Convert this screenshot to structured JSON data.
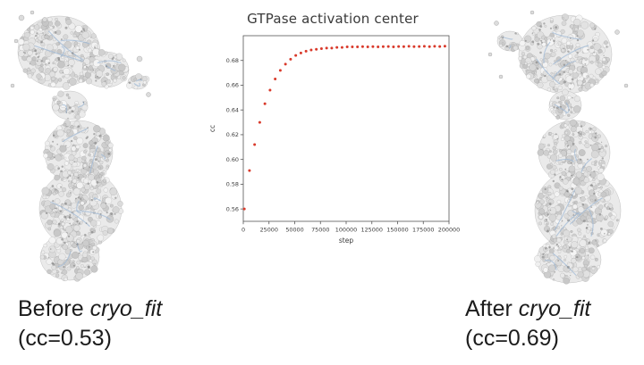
{
  "chart_data": {
    "type": "scatter",
    "title": "GTPase activation center",
    "xlabel": "step",
    "ylabel": "cc",
    "xlim": [
      0,
      200000
    ],
    "ylim": [
      0.55,
      0.7
    ],
    "x_ticks": [
      "0",
      "25000",
      "50000",
      "75000",
      "100000",
      "125000",
      "150000",
      "175000",
      "200000"
    ],
    "y_ticks": [
      "0.56",
      "0.58",
      "0.60",
      "0.62",
      "0.64",
      "0.66",
      "0.68"
    ],
    "marker_color": "#d93a2b",
    "axis_color": "#555555",
    "grid": false,
    "legend": "none",
    "x": [
      1000,
      6000,
      11000,
      16000,
      21000,
      26000,
      31000,
      36000,
      41000,
      46000,
      51000,
      56000,
      61000,
      66000,
      71000,
      76000,
      81000,
      86000,
      91000,
      96000,
      101000,
      106000,
      111000,
      116000,
      121000,
      126000,
      131000,
      136000,
      141000,
      146000,
      151000,
      156000,
      161000,
      166000,
      171000,
      176000,
      181000,
      186000,
      191000,
      196000
    ],
    "y": [
      0.56,
      0.591,
      0.612,
      0.63,
      0.645,
      0.656,
      0.665,
      0.672,
      0.677,
      0.681,
      0.684,
      0.686,
      0.6875,
      0.6885,
      0.689,
      0.6895,
      0.69,
      0.69,
      0.6905,
      0.6905,
      0.691,
      0.691,
      0.691,
      0.6912,
      0.691,
      0.6912,
      0.691,
      0.6912,
      0.6913,
      0.691,
      0.6913,
      0.6912,
      0.6914,
      0.6912,
      0.6913,
      0.6914,
      0.6912,
      0.6914,
      0.6913,
      0.6915
    ]
  },
  "captions": {
    "before_prefix": "Before ",
    "before_italic": "cryo_fit",
    "before_cc": "(cc=0.53)",
    "after_prefix": "After ",
    "after_italic": "cryo_fit",
    "after_cc": "(cc=0.69)"
  }
}
